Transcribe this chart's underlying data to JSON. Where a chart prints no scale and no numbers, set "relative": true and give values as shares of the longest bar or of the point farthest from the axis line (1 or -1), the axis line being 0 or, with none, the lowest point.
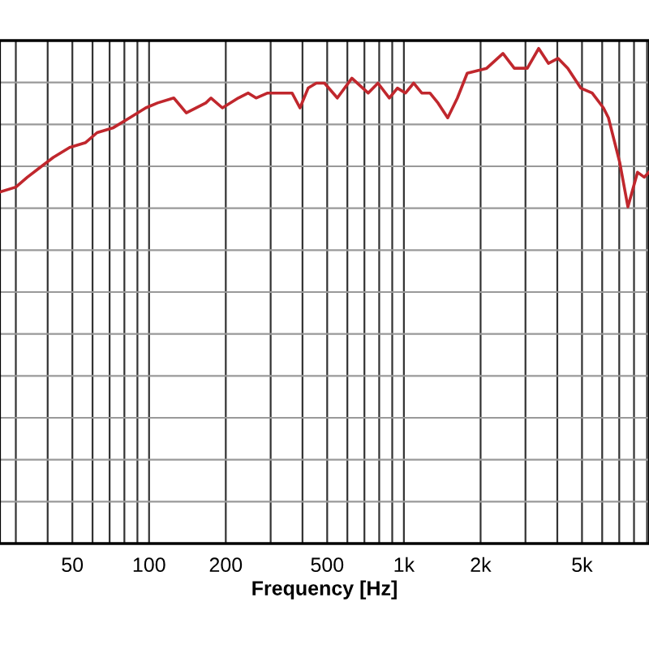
{
  "chart_data": {
    "type": "line",
    "xlabel": "Frequency [Hz]",
    "relative": true,
    "log": "x",
    "grid": true,
    "xlim": [
      26,
      9160
    ],
    "xticks": [
      50,
      100,
      200,
      500,
      {
        "value": 1000,
        "label": "1k"
      },
      {
        "value": 2000,
        "label": "2k"
      },
      {
        "value": 5000,
        "label": "5k"
      }
    ],
    "tick_labels": "x",
    "series": [
      {
        "color": "#c0272d",
        "x": [
          26,
          30,
          33.3,
          37.4,
          42.1,
          48.8,
          56.4,
          62.5,
          72.4,
          83.9,
          97,
          108,
          125,
          140,
          167,
          175,
          194,
          224,
          245,
          263,
          292,
          328,
          364,
          391,
          421,
          453,
          488,
          548,
          625,
          724,
          791,
          877,
          943,
          1015,
          1092,
          1175,
          1265,
          1361,
          1486,
          1622,
          1772,
          2113,
          2448,
          2712,
          2919,
          3050,
          3381,
          3691,
          4030,
          4398,
          4943,
          5480,
          6070,
          6350,
          7030,
          7570,
          8260,
          8770,
          9160
        ],
        "values": [
          0.71,
          0.72,
          0.74,
          0.76,
          0.78,
          0.8,
          0.81,
          0.83,
          0.84,
          0.86,
          0.88,
          0.89,
          0.9,
          0.87,
          0.89,
          0.9,
          0.88,
          0.9,
          0.91,
          0.9,
          0.91,
          0.91,
          0.91,
          0.88,
          0.92,
          0.93,
          0.93,
          0.9,
          0.94,
          0.91,
          0.93,
          0.9,
          0.92,
          0.91,
          0.93,
          0.91,
          0.91,
          0.89,
          0.86,
          0.9,
          0.95,
          0.96,
          0.99,
          0.96,
          0.96,
          0.96,
          1.0,
          0.97,
          0.98,
          0.96,
          0.92,
          0.91,
          0.88,
          0.86,
          0.77,
          0.68,
          0.75,
          0.74,
          0.75
        ]
      }
    ]
  }
}
